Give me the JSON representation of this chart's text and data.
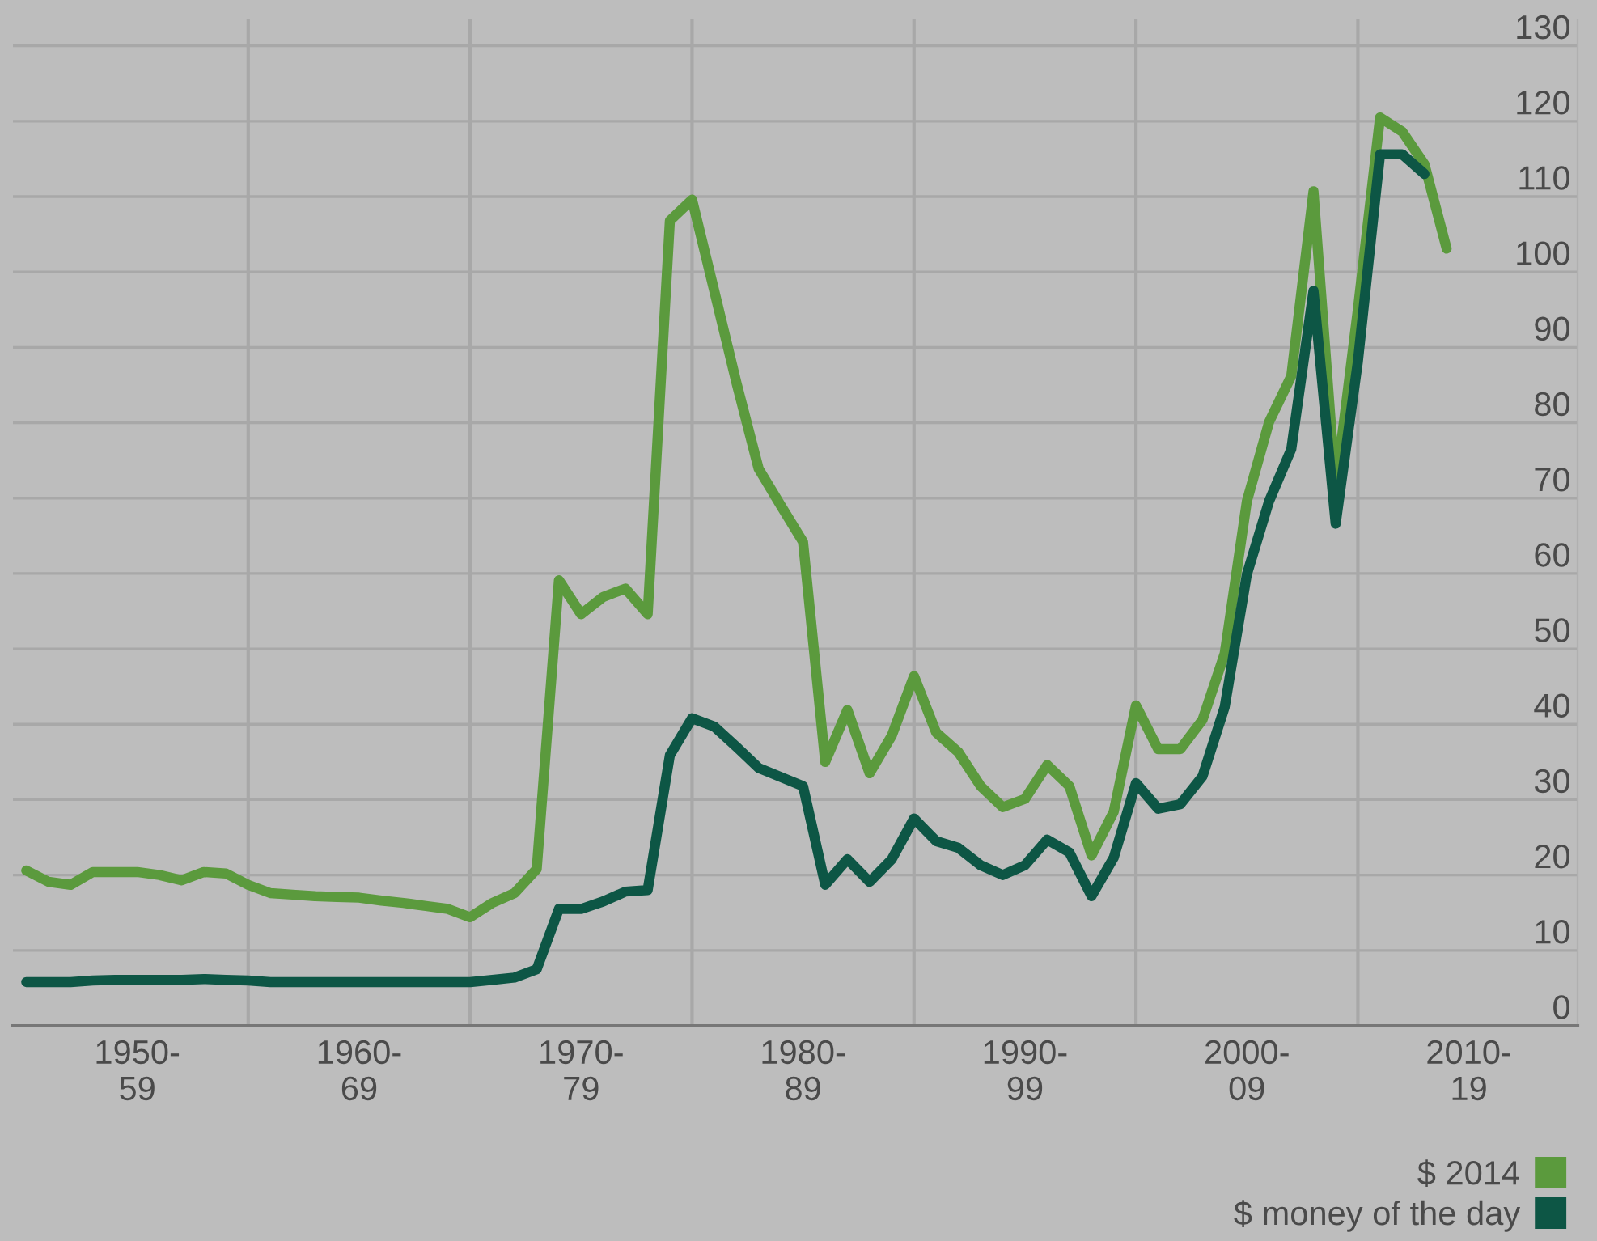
{
  "chart_data": {
    "type": "line",
    "categories": [
      null,
      null,
      null,
      null,
      null,
      "1950-\n59",
      null,
      null,
      null,
      null,
      null,
      null,
      null,
      null,
      null,
      "1960-\n69",
      null,
      null,
      null,
      null,
      null,
      null,
      null,
      null,
      null,
      "1970-\n79",
      null,
      null,
      null,
      null,
      null,
      null,
      null,
      null,
      null,
      "1980-\n89",
      null,
      null,
      null,
      null,
      null,
      null,
      null,
      null,
      null,
      "1990-\n99",
      null,
      null,
      null,
      null,
      null,
      null,
      null,
      null,
      null,
      "2000-\n09",
      null,
      null,
      null,
      null,
      null,
      null,
      null,
      null,
      null,
      "2010-\n19",
      null,
      null,
      null,
      null
    ],
    "series": [
      {
        "name": "$ 2014",
        "color": "#5b9a3d",
        "values": [
          20.6,
          19.1,
          18.7,
          20.4,
          20.4,
          20.4,
          20.0,
          19.3,
          20.4,
          20.2,
          18.7,
          17.6,
          17.4,
          17.2,
          17.1,
          17.0,
          16.6,
          16.3,
          15.9,
          15.5,
          14.4,
          16.3,
          17.6,
          20.8,
          59.1,
          54.6,
          56.9,
          58.0,
          54.6,
          106.8,
          109.6,
          97.5,
          85.3,
          73.9,
          69.0,
          64.2,
          35.0,
          41.9,
          33.5,
          38.5,
          46.4,
          38.9,
          36.3,
          31.8,
          29.0,
          30.1,
          34.6,
          31.8,
          22.6,
          28.4,
          42.5,
          36.7,
          36.7,
          40.6,
          49.4,
          69.6,
          80.1,
          86.2,
          110.7,
          71.3,
          95.0,
          120.5,
          118.6,
          114.3,
          103.1,
          null,
          null,
          null,
          null,
          null
        ]
      },
      {
        "name": "$ money of the day",
        "color": "#0d5645",
        "values": [
          5.8,
          5.8,
          5.8,
          6.0,
          6.1,
          6.1,
          6.1,
          6.1,
          6.2,
          6.1,
          6.0,
          5.8,
          5.8,
          5.8,
          5.8,
          5.8,
          5.8,
          5.8,
          5.8,
          5.8,
          5.8,
          6.1,
          6.4,
          7.5,
          15.5,
          15.5,
          16.5,
          17.8,
          18.0,
          35.9,
          40.8,
          39.7,
          37.0,
          34.2,
          33.0,
          31.8,
          18.7,
          22.1,
          19.1,
          22.1,
          27.5,
          24.5,
          23.6,
          21.3,
          20.0,
          21.3,
          24.7,
          23.0,
          17.2,
          22.3,
          32.2,
          28.8,
          29.4,
          33.1,
          42.3,
          59.9,
          69.6,
          76.5,
          97.5,
          66.6,
          88.1,
          115.6,
          115.6,
          113.0,
          null,
          null,
          null,
          null,
          null,
          null
        ]
      }
    ],
    "ylim": [
      0,
      133.5
    ],
    "yticks": [
      0,
      10,
      20,
      30,
      40,
      50,
      60,
      70,
      80,
      90,
      100,
      110,
      120,
      130
    ],
    "grid": true,
    "legend": "bottom right",
    "marker": "none",
    "line_style": "solid"
  }
}
